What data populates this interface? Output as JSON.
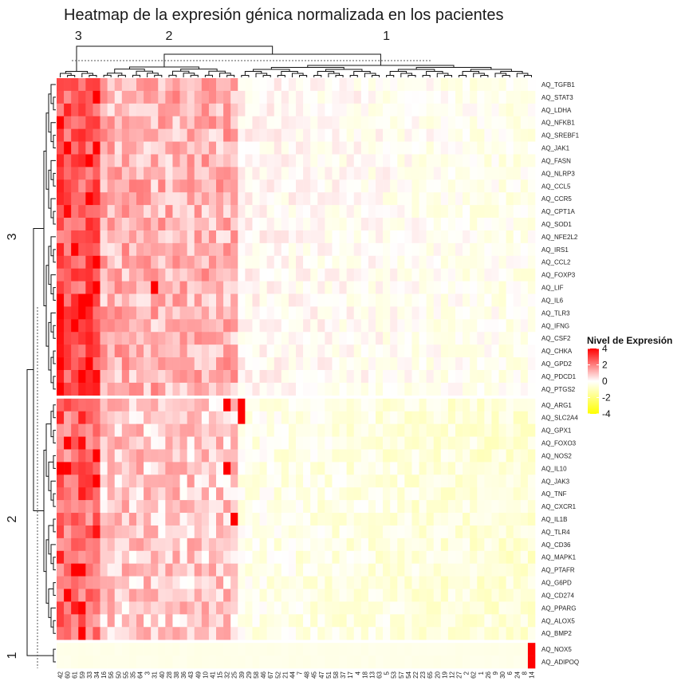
{
  "chart_data": {
    "type": "heatmap",
    "title": "Heatmap de la expresión génica normalizada en los pacientes",
    "legend": {
      "title": "Nivel de Expresión",
      "ticks": [
        4,
        2,
        0,
        -2,
        -4
      ],
      "range": [
        -4,
        4
      ],
      "colors": {
        "low": "#ffff00",
        "mid": "#ffffff",
        "high": "#ff0000"
      },
      "placement": "right"
    },
    "column_clusters": [
      "3",
      "2",
      "1"
    ],
    "row_clusters": [
      "3",
      "2",
      "1"
    ],
    "columns": [
      "42",
      "60",
      "61",
      "59",
      "33",
      "34",
      "16",
      "56",
      "50",
      "55",
      "35",
      "64",
      "3",
      "31",
      "40",
      "28",
      "38",
      "36",
      "43",
      "49",
      "10",
      "41",
      "15",
      "32",
      "25",
      "39",
      "29",
      "58",
      "46",
      "67",
      "52",
      "21",
      "44",
      "7",
      "48",
      "45",
      "47",
      "51",
      "58",
      "37",
      "17",
      "4",
      "18",
      "13",
      "63",
      "5",
      "53",
      "57",
      "54",
      "22",
      "23",
      "65",
      "20",
      "19",
      "12",
      "27",
      "2",
      "62",
      "1",
      "26",
      "9",
      "30",
      "6",
      "24",
      "8",
      "14"
    ],
    "column_group_sizes": [
      6,
      19,
      41
    ],
    "rows": [
      "AQ_TGFB1",
      "AQ_STAT3",
      "AQ_LDHA",
      "AQ_NFKB1",
      "AQ_SREBF1",
      "AQ_JAK1",
      "AQ_FASN",
      "AQ_NLRP3",
      "AQ_CCL5",
      "AQ_CCR5",
      "AQ_CPT1A",
      "AQ_SOD1",
      "AQ_NFE2L2",
      "AQ_IRS1",
      "AQ_CCL2",
      "AQ_FOXP3",
      "AQ_LIF",
      "AQ_IL6",
      "AQ_TLR3",
      "AQ_IFNG",
      "AQ_CSF2",
      "AQ_CHKA",
      "AQ_GPD2",
      "AQ_PDCD1",
      "AQ_PTGS2",
      "AQ_ARG1",
      "AQ_SLC2A4",
      "AQ_GPX1",
      "AQ_FOXO3",
      "AQ_NOS2",
      "AQ_IL10",
      "AQ_JAK3",
      "AQ_TNF",
      "AQ_CXCR1",
      "AQ_IL1B",
      "AQ_TLR4",
      "AQ_CD36",
      "AQ_MAPK1",
      "AQ_PTAFR",
      "AQ_G6PD",
      "AQ_CD274",
      "AQ_PPARG",
      "AQ_ALOX5",
      "AQ_BMP2",
      "AQ_NOX5",
      "AQ_ADIPOQ"
    ],
    "row_group_sizes": [
      25,
      19,
      2
    ],
    "value_pattern": {
      "column_groups_mean": [
        2.2,
        0.8,
        -0.3
      ],
      "row_group_bias": [
        0.4,
        0.0,
        0
      ],
      "hotspots": [
        {
          "row": "AQ_NOX5",
          "col": "14",
          "value": 4
        },
        {
          "row": "AQ_ADIPOQ",
          "col": "14",
          "value": 4
        },
        {
          "row": "AQ_ARG1",
          "col": "39",
          "value": 4
        },
        {
          "row": "AQ_SLC2A4",
          "col": "39",
          "value": 4
        },
        {
          "row": "AQ_IL10",
          "col": "32",
          "value": 4
        },
        {
          "row": "AQ_IL1B",
          "col": "25",
          "value": 4
        },
        {
          "row": "AQ_ARG1",
          "col": "32",
          "value": 4
        },
        {
          "row": "AQ_IL6",
          "col": "59",
          "value": 4
        },
        {
          "row": "AQ_PDCD1",
          "col": "59",
          "value": 4
        },
        {
          "row": "AQ_CCL2",
          "col": "34",
          "value": 4
        },
        {
          "row": "AQ_LIF",
          "col": "31",
          "value": 4
        },
        {
          "row": "AQ_TLR3",
          "col": "42",
          "value": 4
        },
        {
          "row": "AQ_CD274",
          "col": "60",
          "value": 4
        },
        {
          "row": "AQ_IL10",
          "col": "42",
          "value": 4
        },
        {
          "row": "AQ_NOS2",
          "col": "34",
          "value": 4
        },
        {
          "row": "AQ_BMP2",
          "col": "59",
          "value": 4
        },
        {
          "row": "AQ_STAT3",
          "col": "34",
          "value": 4
        }
      ]
    }
  }
}
